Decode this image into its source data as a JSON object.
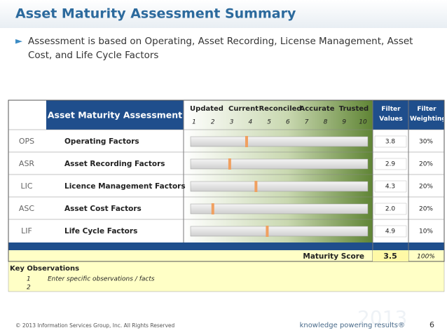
{
  "header": {
    "title": "Asset Maturity Assessment Summary",
    "bullet": "Assessment is based on Operating, Asset Recording, License Management, Asset Cost, and Life Cycle Factors"
  },
  "table": {
    "heading": "Asset Maturity Assessment",
    "stages": [
      "Updated",
      "Current",
      "Reconciled",
      "Accurate",
      "Trusted"
    ],
    "scale_lim": [
      1,
      10
    ],
    "scale_ticks": [
      1,
      2,
      3,
      4,
      5,
      6,
      7,
      8,
      9,
      10
    ],
    "filter_values_label": "Filter Values",
    "filter_weighting_label": "Filter Weighting",
    "rows": [
      {
        "code": "OPS",
        "name": "Operating Factors",
        "value": 3.8,
        "weighting": {
          "value": 30,
          "label": "30%"
        }
      },
      {
        "code": "ASR",
        "name": "Asset Recording Factors",
        "value": 2.9,
        "weighting": {
          "value": 20,
          "label": "20%"
        }
      },
      {
        "code": "LIC",
        "name": "Licence Management Factors",
        "value": 4.3,
        "weighting": {
          "value": 20,
          "label": "20%"
        }
      },
      {
        "code": "ASC",
        "name": "Asset Cost Factors",
        "value": {
          "value": 2.0,
          "label": "2.0"
        },
        "weighting": {
          "value": 20,
          "label": "20%"
        }
      },
      {
        "code": "LIF",
        "name": "Life Cycle Factors",
        "value": 4.9,
        "weighting": {
          "value": 10,
          "label": "10%"
        }
      }
    ],
    "score_label": "Maturity Score",
    "score": 3.5,
    "score_weighting": {
      "value": 100,
      "label": "100%"
    }
  },
  "observations": {
    "title": "Key Observations",
    "items": [
      {
        "number": 1,
        "text": "Enter specific observations / facts"
      },
      {
        "number": 2
      }
    ]
  },
  "footer": {
    "copyright": "© 2013 Information Services Group, Inc. All Rights Reserved",
    "tagline": "knowledge powering results®",
    "watermark": "2013",
    "page": 6
  }
}
